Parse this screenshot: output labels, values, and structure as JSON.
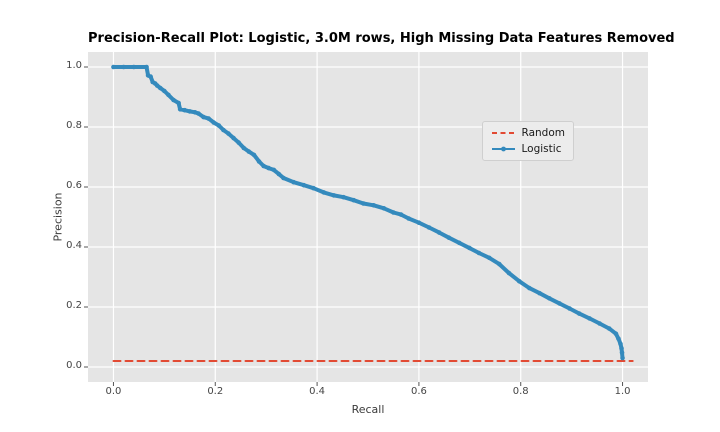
{
  "figure": {
    "kind": "matplotlib-style-figure",
    "background": "#ffffff"
  },
  "colors": {
    "axes_background": "#e5e5e5",
    "grid": "#ffffff",
    "tick_mark": "#555555",
    "tick_label": "#454545",
    "axis_label": "#3b3b3b",
    "title_text": "#000000",
    "random_line": "#e24a33",
    "logistic_line": "#348abd",
    "legend_background": "#ececec",
    "legend_border": "#cfcfcf",
    "legend_text": "#1a1a1a"
  },
  "chart_data": {
    "type": "line",
    "title": "Precision-Recall Plot: Logistic, 3.0M rows, High Missing Data Features Removed",
    "xlabel": "Recall",
    "ylabel": "Precision",
    "xlim": [
      -0.05,
      1.05
    ],
    "ylim": [
      -0.05,
      1.05
    ],
    "x_ticks": [
      0.0,
      0.2,
      0.4,
      0.6,
      0.8,
      1.0
    ],
    "x_tick_labels": [
      "0.0",
      "0.2",
      "0.4",
      "0.6",
      "0.8",
      "1.0"
    ],
    "y_ticks": [
      0.0,
      0.2,
      0.4,
      0.6,
      0.8,
      1.0
    ],
    "y_tick_labels": [
      "0.0",
      "0.2",
      "0.4",
      "0.6",
      "0.8",
      "1.0"
    ],
    "grid": true,
    "legend_position": "upper right",
    "series": [
      {
        "name": "Random",
        "color": "#e24a33",
        "line_style": "dashed",
        "line_width": 2,
        "marker": "none",
        "points": [
          [
            0.0,
            0.02
          ],
          [
            1.02,
            0.02
          ]
        ]
      },
      {
        "name": "Logistic",
        "color": "#348abd",
        "line_style": "solid",
        "line_width": 4,
        "marker": "dot",
        "points": [
          [
            0.0,
            1.0
          ],
          [
            0.02,
            1.0
          ],
          [
            0.04,
            1.0
          ],
          [
            0.065,
            1.0
          ],
          [
            0.068,
            0.972
          ],
          [
            0.073,
            0.968
          ],
          [
            0.077,
            0.95
          ],
          [
            0.082,
            0.945
          ],
          [
            0.086,
            0.938
          ],
          [
            0.092,
            0.93
          ],
          [
            0.1,
            0.92
          ],
          [
            0.108,
            0.907
          ],
          [
            0.118,
            0.89
          ],
          [
            0.128,
            0.88
          ],
          [
            0.131,
            0.859
          ],
          [
            0.14,
            0.856
          ],
          [
            0.15,
            0.852
          ],
          [
            0.16,
            0.849
          ],
          [
            0.167,
            0.845
          ],
          [
            0.177,
            0.833
          ],
          [
            0.187,
            0.828
          ],
          [
            0.197,
            0.815
          ],
          [
            0.207,
            0.805
          ],
          [
            0.216,
            0.79
          ],
          [
            0.226,
            0.778
          ],
          [
            0.236,
            0.763
          ],
          [
            0.246,
            0.748
          ],
          [
            0.256,
            0.73
          ],
          [
            0.266,
            0.718
          ],
          [
            0.276,
            0.707
          ],
          [
            0.286,
            0.685
          ],
          [
            0.295,
            0.67
          ],
          [
            0.305,
            0.663
          ],
          [
            0.315,
            0.657
          ],
          [
            0.325,
            0.643
          ],
          [
            0.334,
            0.63
          ],
          [
            0.354,
            0.616
          ],
          [
            0.374,
            0.606
          ],
          [
            0.393,
            0.596
          ],
          [
            0.413,
            0.582
          ],
          [
            0.433,
            0.572
          ],
          [
            0.452,
            0.566
          ],
          [
            0.472,
            0.556
          ],
          [
            0.491,
            0.545
          ],
          [
            0.511,
            0.539
          ],
          [
            0.531,
            0.529
          ],
          [
            0.55,
            0.515
          ],
          [
            0.565,
            0.508
          ],
          [
            0.58,
            0.495
          ],
          [
            0.6,
            0.481
          ],
          [
            0.62,
            0.465
          ],
          [
            0.64,
            0.448
          ],
          [
            0.659,
            0.431
          ],
          [
            0.679,
            0.414
          ],
          [
            0.699,
            0.397
          ],
          [
            0.718,
            0.38
          ],
          [
            0.738,
            0.364
          ],
          [
            0.758,
            0.343
          ],
          [
            0.777,
            0.313
          ],
          [
            0.797,
            0.286
          ],
          [
            0.817,
            0.263
          ],
          [
            0.837,
            0.246
          ],
          [
            0.856,
            0.229
          ],
          [
            0.876,
            0.212
          ],
          [
            0.896,
            0.195
          ],
          [
            0.915,
            0.178
          ],
          [
            0.935,
            0.162
          ],
          [
            0.955,
            0.145
          ],
          [
            0.974,
            0.128
          ],
          [
            0.987,
            0.111
          ],
          [
            0.992,
            0.094
          ],
          [
            0.996,
            0.077
          ],
          [
            0.998,
            0.062
          ],
          [
            0.999,
            0.048
          ],
          [
            1.0,
            0.03
          ]
        ]
      }
    ]
  }
}
